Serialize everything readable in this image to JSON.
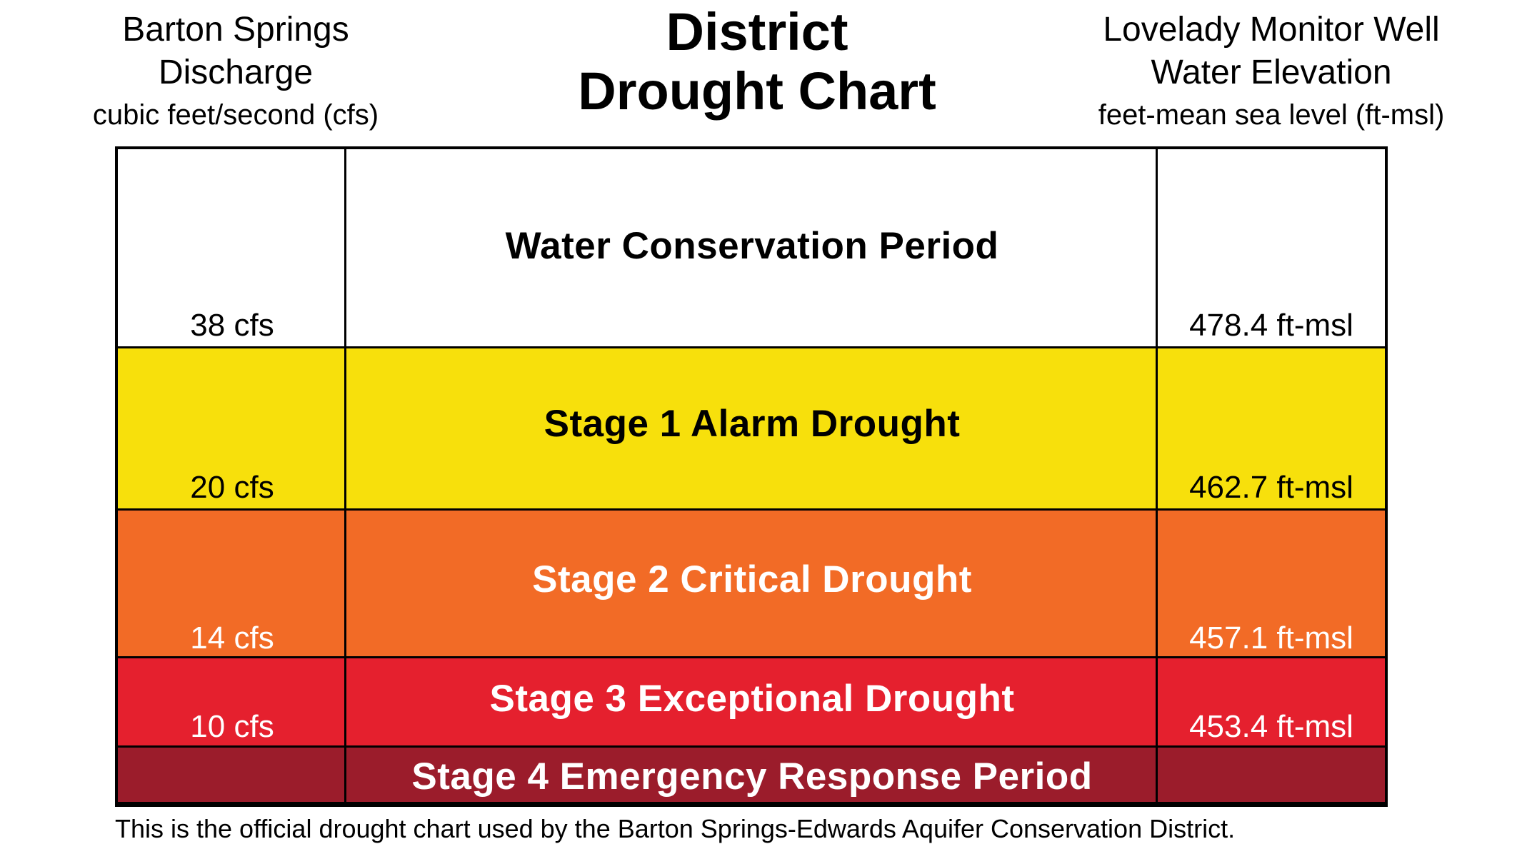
{
  "header": {
    "left": {
      "line1": "Barton Springs",
      "line2": "Discharge",
      "line3": "cubic feet/second (cfs)"
    },
    "title": {
      "line1": "District",
      "line2": "Drought Chart"
    },
    "right": {
      "line1": "Lovelady Monitor Well",
      "line2": "Water Elevation",
      "line3": "feet-mean sea level (ft-msl)"
    }
  },
  "stages": [
    {
      "label": "Water Conservation Period",
      "cfs": "38 cfs",
      "ft": "478.4 ft-msl",
      "color": "#ffffff",
      "text_color": "#000000"
    },
    {
      "label": "Stage 1 Alarm Drought",
      "cfs": "20 cfs",
      "ft": "462.7 ft-msl",
      "color": "#f7e00c",
      "text_color": "#000000"
    },
    {
      "label": "Stage 2 Critical Drought",
      "cfs": "14 cfs",
      "ft": "457.1 ft-msl",
      "color": "#f26b26",
      "text_color": "#ffffff"
    },
    {
      "label": "Stage 3 Exceptional Drought",
      "cfs": "10 cfs",
      "ft": "453.4 ft-msl",
      "color": "#e5202e",
      "text_color": "#ffffff"
    },
    {
      "label": "Stage 4 Emergency Response Period",
      "cfs": "",
      "ft": "",
      "color": "#9b1c2b",
      "text_color": "#ffffff"
    }
  ],
  "footnote": "This is the official drought chart used by the Barton Springs-Edwards Aquifer Conservation District."
}
